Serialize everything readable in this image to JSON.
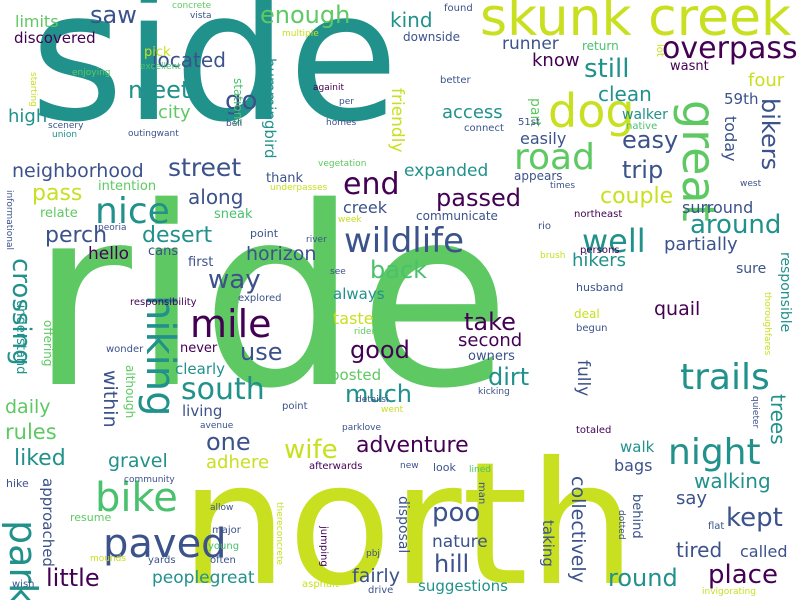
{
  "colors": {
    "background": "#ffffff",
    "light_green": "#5ec962",
    "yellow": "#c8e020",
    "teal": "#21918c",
    "blue": "#3b528b",
    "dark_purple": "#440154",
    "green": "#4ac16d"
  },
  "words": {
    "ride": "ride",
    "side": "side",
    "north": "north",
    "skunk_creek": "skunk creek",
    "dog": "dog",
    "great": "great",
    "overpass": "overpass",
    "road": "road",
    "wildlife": "wildlife",
    "mile": "mile",
    "hiking": "hiking",
    "bike": "bike",
    "paved": "paved",
    "park": "park",
    "nice": "nice",
    "trails": "trails",
    "night": "night",
    "south": "south",
    "end": "end",
    "well": "well",
    "saw": "saw",
    "meet": "meet",
    "go": "go",
    "street": "street",
    "desert": "desert",
    "pass": "pass",
    "along": "along",
    "passed": "passed",
    "still": "still",
    "easy": "easy",
    "trip": "trip",
    "couple": "couple",
    "around": "around",
    "bikers": "bikers",
    "back": "back",
    "way": "way",
    "use": "use",
    "good": "good",
    "take": "take",
    "second": "second",
    "dirt": "dirt",
    "much": "much",
    "one": "one",
    "wife": "wife",
    "adventure": "adventure",
    "liked": "liked",
    "gravel": "gravel",
    "poo": "poo",
    "hill": "hill",
    "kept": "kept",
    "place": "place",
    "round": "round",
    "little": "little",
    "fairly": "fairly",
    "enough": "enough",
    "located": "located",
    "city": "city",
    "high": "high",
    "neighborhood": "neighborhood",
    "limits": "limits",
    "discovered": "discovered",
    "kind": "kind",
    "know": "know",
    "runner": "runner",
    "clean": "clean",
    "access": "access",
    "friendly": "friendly",
    "hummingbird": "hummingbird",
    "four": "four",
    "today": "today",
    "59th": "59th",
    "walker": "walker",
    "surround": "surround",
    "partially": "partially",
    "hikers": "hikers",
    "perch": "perch",
    "hello": "hello",
    "horizon": "horizon",
    "expanded": "expanded",
    "communicate": "communicate",
    "creek": "creek",
    "crossing": "crossing",
    "always": "always",
    "taste": "taste",
    "quail": "quail",
    "responsible": "responsible",
    "trees": "trees",
    "walking": "walking",
    "say": "say",
    "tired": "tired",
    "called": "called",
    "nature": "nature",
    "suggestions": "suggestions",
    "peoplegreat": "peoplegreat",
    "collectively": "collectively",
    "within": "within",
    "daily": "daily",
    "rules": "rules",
    "adhere": "adhere",
    "living": "living",
    "clearly": "clearly",
    "posted": "posted",
    "owners": "owners",
    "fully": "fully",
    "walk": "walk",
    "bags": "bags",
    "behind": "behind",
    "taking": "taking",
    "disposal": "disposal",
    "approached": "approached",
    "resume": "resume",
    "intention": "intention",
    "relate": "relate",
    "sneak": "sneak",
    "first": "first",
    "cans": "cans",
    "thank": "thank",
    "understand": "understand",
    "offering": "offering",
    "although": "although",
    "never": "never",
    "sure": "sure",
    "easily": "easily",
    "appears": "appears",
    "part": "part",
    "native": "native",
    "return": "return",
    "wasnt": "wasnt",
    "downside": "downside",
    "found": "found",
    "lot": "lot",
    "pick": "pick",
    "stations": "stations",
    "concrete": "concrete",
    "vista": "vista",
    "multiple": "multiple",
    "excellent": "excellent",
    "enjoying": "enjoying",
    "starting": "starting",
    "scenery": "scenery",
    "union": "union",
    "outingwant": "outingwant",
    "bell": "bell",
    "againit": "againit",
    "per": "per",
    "homes": "homes",
    "better": "better",
    "51st": "51st",
    "connect": "connect",
    "vegetation": "vegetation",
    "times": "times",
    "west": "west",
    "underpasses": "underpasses",
    "informational": "informational",
    "week": "week",
    "peoria": "peoria",
    "point": "point",
    "river": "river",
    "rio": "rio",
    "northeast": "northeast",
    "brush": "brush",
    "persons": "persons",
    "husband": "husband",
    "see": "see",
    "responsibility": "responsibility",
    "explored": "explored",
    "riders": "riders",
    "deal": "deal",
    "begun": "begun",
    "thoroughfares": "thoroughfares",
    "wonder": "wonder",
    "kicking": "kicking",
    "went": "went",
    "detailsi": "detailsi",
    "parklove": "parklove",
    "avenue": "avenue",
    "quieter": "quieter",
    "totaled": "totaled",
    "afterwards": "afterwards",
    "new": "new",
    "look": "look",
    "lined": "lined",
    "man": "man",
    "hike": "hike",
    "community": "community",
    "allow": "allow",
    "major": "major",
    "young": "young",
    "often": "often",
    "thereconcrete": "thereconcrete",
    "jumping": "jumping",
    "pbj": "pbj",
    "yards": "yards",
    "mounds": "mounds",
    "wish": "wish",
    "asphalt": "asphalt",
    "drive": "drive",
    "dotted": "dotted",
    "flat": "flat",
    "invigorating": "invigorating"
  }
}
